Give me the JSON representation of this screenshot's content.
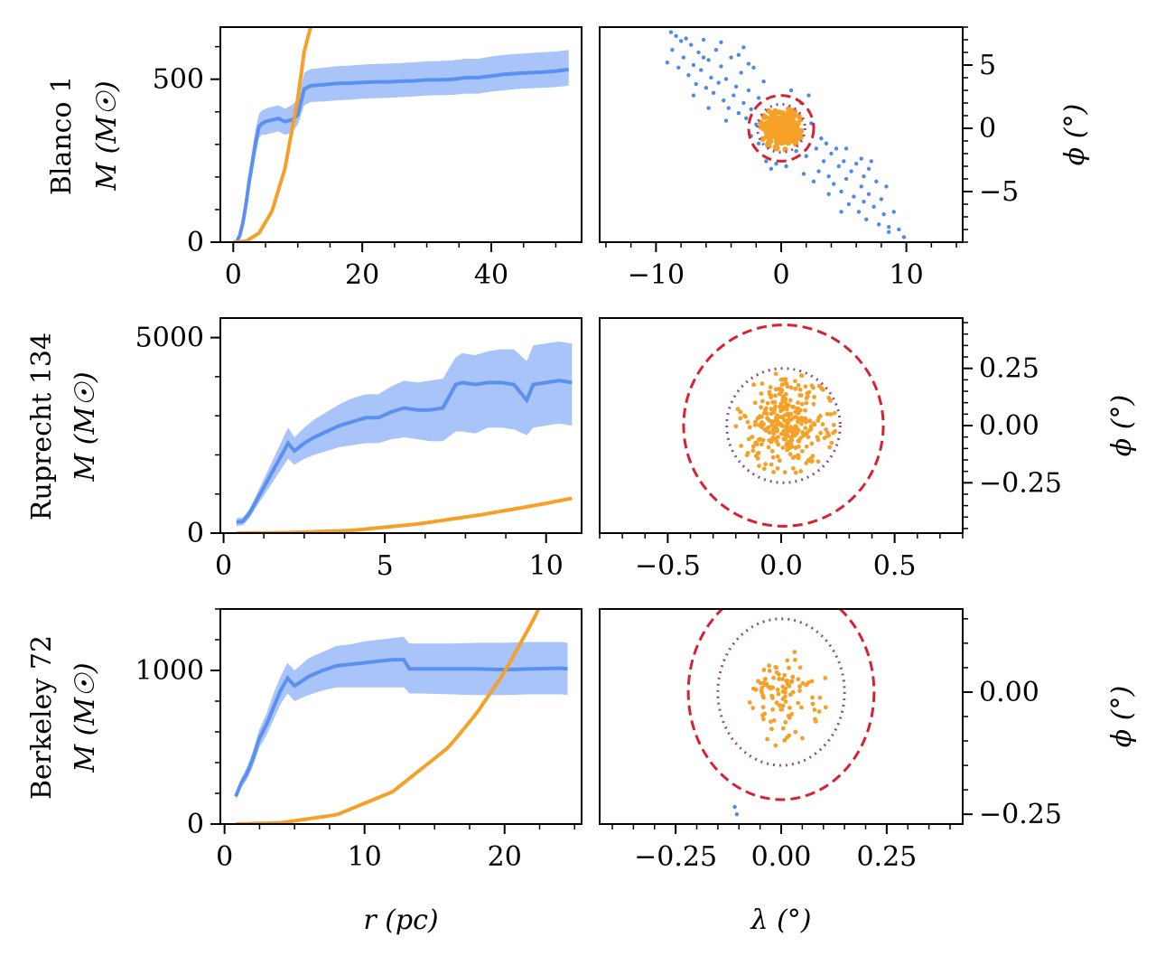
{
  "figure": {
    "xlabel_left": "r (pc)",
    "xlabel_right": "λ (°)"
  },
  "colors": {
    "profile": "#5b8ff0",
    "band": "#a8c4f8",
    "model": "#f5a027",
    "stars_member": "#f5a027",
    "stars_other": "#4f8ae8",
    "circle_outer": "#d62233",
    "circle_inner": "#8b4f8f"
  },
  "chart_data": [
    {
      "type": "line",
      "panel": "Blanco 1 mass profile",
      "row_label": "Blanco 1",
      "ylabel": "M (M☉)",
      "xlabel": "",
      "xlim": [
        -2,
        54
      ],
      "ylim": [
        0,
        660
      ],
      "xticks": [
        0,
        20,
        40
      ],
      "yticks": [
        0,
        500
      ],
      "series": [
        {
          "role": "profile",
          "x": [
            0.5,
            1,
            1.5,
            2,
            2.5,
            3,
            3.5,
            4,
            4.5,
            5,
            6,
            7,
            8,
            9,
            10,
            11,
            12,
            14,
            16,
            18,
            20,
            22,
            24,
            26,
            28,
            30,
            32,
            34,
            36,
            38,
            40,
            42,
            44,
            46,
            48,
            50,
            52
          ],
          "y": [
            0,
            20,
            60,
            120,
            190,
            250,
            310,
            355,
            365,
            370,
            375,
            380,
            370,
            375,
            390,
            470,
            480,
            483,
            487,
            488,
            490,
            492,
            492,
            494,
            495,
            498,
            498,
            500,
            505,
            505,
            510,
            515,
            518,
            520,
            522,
            525,
            530
          ],
          "lower": [
            0,
            15,
            50,
            100,
            160,
            210,
            270,
            320,
            330,
            330,
            335,
            340,
            330,
            335,
            360,
            420,
            430,
            432,
            435,
            437,
            440,
            442,
            443,
            445,
            447,
            450,
            451,
            452,
            456,
            456,
            462,
            466,
            470,
            472,
            474,
            476,
            480
          ],
          "upper": [
            0,
            25,
            70,
            140,
            220,
            290,
            350,
            395,
            405,
            410,
            415,
            420,
            410,
            420,
            435,
            520,
            532,
            535,
            540,
            542,
            545,
            547,
            548,
            550,
            552,
            555,
            556,
            558,
            563,
            563,
            570,
            575,
            578,
            580,
            583,
            585,
            590
          ]
        },
        {
          "role": "model",
          "x": [
            0,
            2,
            4,
            6,
            8,
            10,
            11,
            12
          ],
          "y": [
            0,
            3,
            28,
            95,
            225,
            440,
            585,
            660
          ]
        }
      ]
    },
    {
      "type": "scatter",
      "panel": "Blanco 1 sky",
      "xlabel": "",
      "ylabel": "ϕ (°)",
      "xlim": [
        -14.5,
        14.5
      ],
      "ylim": [
        -9,
        8
      ],
      "xticks": [
        -10,
        0,
        10
      ],
      "yticks": [
        -5,
        0,
        5
      ],
      "circles": [
        {
          "role": "outer",
          "center": [
            0,
            0
          ],
          "radius": 2.6
        },
        {
          "role": "inner",
          "center": [
            0,
            0
          ],
          "radius": 1.9
        }
      ],
      "member_cluster": {
        "center": [
          0,
          0
        ],
        "radius": 1.7,
        "count": 260
      },
      "others": [
        [
          -9.1,
          5.2
        ],
        [
          -8.7,
          6.2
        ],
        [
          -8.4,
          7.3
        ],
        [
          -8.2,
          4.8
        ],
        [
          -8.0,
          6.9
        ],
        [
          -7.8,
          5.6
        ],
        [
          -7.6,
          7.1
        ],
        [
          -7.4,
          4.2
        ],
        [
          -7.2,
          6.6
        ],
        [
          -7.0,
          5.0
        ],
        [
          -6.8,
          3.5
        ],
        [
          -6.6,
          6.0
        ],
        [
          -6.4,
          4.6
        ],
        [
          -6.2,
          7.0
        ],
        [
          -6.0,
          3.2
        ],
        [
          -5.8,
          5.4
        ],
        [
          -5.6,
          4.0
        ],
        [
          -5.4,
          2.8
        ],
        [
          -5.2,
          6.2
        ],
        [
          -5.0,
          3.6
        ],
        [
          -4.8,
          4.9
        ],
        [
          -4.6,
          2.2
        ],
        [
          -4.4,
          3.9
        ],
        [
          -4.2,
          1.6
        ],
        [
          -4.0,
          5.6
        ],
        [
          -3.8,
          2.6
        ],
        [
          -3.6,
          3.3
        ],
        [
          -3.4,
          1.2
        ],
        [
          -3.2,
          4.4
        ],
        [
          -3.0,
          2.0
        ],
        [
          -2.8,
          0.8
        ],
        [
          -2.6,
          3.0
        ],
        [
          -2.4,
          1.5
        ],
        [
          -2.2,
          4.8
        ],
        [
          -2.0,
          0.3
        ],
        [
          -1.8,
          2.4
        ],
        [
          -2.6,
          5.1
        ],
        [
          -3.4,
          5.8
        ],
        [
          -1.4,
          3.7
        ],
        [
          -1.2,
          -2.6
        ],
        [
          -0.8,
          -3.2
        ],
        [
          -0.4,
          -2.8
        ],
        [
          0.4,
          -3.0
        ],
        [
          0.8,
          3.0
        ],
        [
          1.2,
          -1.8
        ],
        [
          1.6,
          2.0
        ],
        [
          2.0,
          -2.2
        ],
        [
          2.4,
          0.4
        ],
        [
          2.8,
          -1.6
        ],
        [
          3.0,
          -3.4
        ],
        [
          3.2,
          -0.8
        ],
        [
          3.4,
          -2.6
        ],
        [
          3.6,
          -1.2
        ],
        [
          3.8,
          -3.8
        ],
        [
          4.0,
          -2.0
        ],
        [
          4.2,
          -4.4
        ],
        [
          4.4,
          -1.6
        ],
        [
          4.6,
          -3.0
        ],
        [
          4.8,
          -5.0
        ],
        [
          5.0,
          -2.6
        ],
        [
          5.2,
          -4.0
        ],
        [
          5.4,
          -6.0
        ],
        [
          5.6,
          -3.4
        ],
        [
          5.8,
          -5.4
        ],
        [
          6.0,
          -2.8
        ],
        [
          6.2,
          -6.6
        ],
        [
          6.4,
          -4.6
        ],
        [
          6.6,
          -3.8
        ],
        [
          6.8,
          -7.2
        ],
        [
          7.0,
          -5.2
        ],
        [
          7.2,
          -2.6
        ],
        [
          7.4,
          -6.2
        ],
        [
          7.6,
          -4.2
        ],
        [
          7.8,
          -7.6
        ],
        [
          8.0,
          -5.6
        ],
        [
          8.2,
          -6.8
        ],
        [
          8.4,
          -4.6
        ],
        [
          8.6,
          -7.8
        ],
        [
          9.0,
          -6.6
        ],
        [
          9.4,
          -8.0
        ],
        [
          9.8,
          -8.6
        ],
        [
          7.0,
          -3.2
        ],
        [
          6.4,
          -2.4
        ],
        [
          5.2,
          -1.6
        ],
        [
          -5.8,
          1.6
        ],
        [
          -7.0,
          2.6
        ],
        [
          -4.4,
          0.6
        ],
        [
          -6.2,
          5.6
        ],
        [
          -8.8,
          7.6
        ],
        [
          2.6,
          -4.2
        ],
        [
          1.8,
          -3.6
        ],
        [
          3.8,
          -5.2
        ],
        [
          4.8,
          -6.6
        ],
        [
          6.6,
          -5.8
        ],
        [
          8.6,
          -8.2
        ],
        [
          -3.0,
          6.4
        ],
        [
          -4.8,
          6.8
        ],
        [
          -1.8,
          -1.2
        ],
        [
          -2.4,
          -0.6
        ],
        [
          2.2,
          2.6
        ]
      ]
    },
    {
      "type": "line",
      "panel": "Ruprecht 134 mass profile",
      "row_label": "Ruprecht 134",
      "ylabel": "M (M☉)",
      "xlabel": "",
      "xlim": [
        -0.1,
        11.1
      ],
      "ylim": [
        0,
        5500
      ],
      "xticks": [
        0,
        5,
        10
      ],
      "yticks": [
        0,
        5000
      ],
      "series": [
        {
          "role": "profile",
          "x": [
            0.4,
            0.6,
            0.8,
            1.0,
            1.2,
            1.4,
            1.6,
            1.8,
            2.0,
            2.2,
            2.5,
            2.8,
            3.2,
            3.6,
            4.0,
            4.4,
            4.8,
            5.2,
            5.6,
            6.0,
            6.4,
            6.8,
            7.2,
            7.4,
            7.8,
            8.2,
            8.6,
            9.0,
            9.4,
            9.6,
            10.0,
            10.4,
            10.8
          ],
          "y": [
            280,
            300,
            500,
            800,
            1100,
            1400,
            1700,
            2000,
            2300,
            2100,
            2300,
            2450,
            2600,
            2750,
            2850,
            2950,
            2950,
            3100,
            3200,
            3150,
            3150,
            3200,
            3800,
            3850,
            3800,
            3850,
            3850,
            3800,
            3400,
            3800,
            3850,
            3900,
            3850
          ],
          "lower": [
            180,
            200,
            380,
            650,
            900,
            1150,
            1400,
            1650,
            1900,
            1750,
            1900,
            2000,
            2100,
            2200,
            2250,
            2300,
            2300,
            2400,
            2450,
            2400,
            2350,
            2350,
            2600,
            2600,
            2550,
            2700,
            2700,
            2650,
            2500,
            2700,
            2750,
            2800,
            2750
          ],
          "upper": [
            380,
            400,
            620,
            950,
            1300,
            1650,
            2000,
            2350,
            2700,
            2450,
            2700,
            2900,
            3100,
            3300,
            3450,
            3550,
            3550,
            3750,
            3900,
            3850,
            3900,
            3950,
            4500,
            4600,
            4550,
            4650,
            4700,
            4700,
            4400,
            4800,
            4850,
            4900,
            4850
          ]
        },
        {
          "role": "model",
          "x": [
            0.4,
            2,
            4,
            6,
            8,
            10,
            10.8
          ],
          "y": [
            0,
            12,
            70,
            230,
            470,
            760,
            890
          ]
        }
      ]
    },
    {
      "type": "scatter",
      "panel": "Ruprecht 134 sky",
      "xlabel": "",
      "ylabel": "ϕ (°)",
      "xlim": [
        -0.8,
        0.8
      ],
      "ylim": [
        -0.47,
        0.47
      ],
      "xticks": [
        -0.5,
        0.0,
        0.5
      ],
      "yticks": [
        -0.25,
        0.0,
        0.25
      ],
      "circles": [
        {
          "role": "outer",
          "center": [
            0.01,
            0.0
          ],
          "radius": 0.44
        },
        {
          "role": "inner",
          "center": [
            0.01,
            0.0
          ],
          "radius": 0.25
        }
      ],
      "member_cluster": {
        "center": [
          0.02,
          0.01
        ],
        "radius": 0.22,
        "count": 320
      },
      "others": []
    },
    {
      "type": "line",
      "panel": "Berkeley 72 mass profile",
      "row_label": "Berkeley 72",
      "ylabel": "M (M☉)",
      "xlabel": "r (pc)",
      "xlim": [
        -0.3,
        25.5
      ],
      "ylim": [
        0,
        1400
      ],
      "xticks": [
        0,
        10,
        20
      ],
      "yticks": [
        0,
        1000
      ],
      "series": [
        {
          "role": "profile",
          "x": [
            0.8,
            1.2,
            1.6,
            2.0,
            2.5,
            3.0,
            3.5,
            4.0,
            4.5,
            5.0,
            5.5,
            6.0,
            7.0,
            8.0,
            9.0,
            10.0,
            11.0,
            12.0,
            12.8,
            13.2,
            14.0,
            16.0,
            18.0,
            20.0,
            22.0,
            24.0,
            24.5
          ],
          "y": [
            180,
            270,
            330,
            420,
            560,
            650,
            760,
            870,
            950,
            900,
            930,
            960,
            1000,
            1030,
            1040,
            1050,
            1060,
            1070,
            1070,
            1010,
            1010,
            1010,
            1010,
            1005,
            1010,
            1015,
            1010
          ],
          "lower": [
            160,
            240,
            290,
            370,
            500,
            580,
            680,
            780,
            850,
            800,
            820,
            840,
            870,
            890,
            890,
            890,
            890,
            890,
            890,
            850,
            850,
            845,
            840,
            840,
            845,
            845,
            840
          ],
          "upper": [
            200,
            300,
            370,
            470,
            620,
            720,
            850,
            960,
            1050,
            1000,
            1040,
            1080,
            1120,
            1160,
            1170,
            1190,
            1200,
            1210,
            1220,
            1175,
            1175,
            1175,
            1180,
            1180,
            1185,
            1185,
            1180
          ]
        },
        {
          "role": "model",
          "x": [
            0.8,
            4,
            8,
            12,
            16,
            18,
            20,
            22,
            24
          ],
          "y": [
            0,
            8,
            60,
            210,
            500,
            720,
            990,
            1320,
            1700
          ]
        }
      ]
    },
    {
      "type": "scatter",
      "panel": "Berkeley 72 sky",
      "xlabel": "λ (°)",
      "ylabel": "ϕ (°)",
      "xlim": [
        -0.43,
        0.43
      ],
      "ylim": [
        -0.27,
        0.17
      ],
      "xticks": [
        -0.25,
        0.0,
        0.25
      ],
      "yticks": [
        -0.25,
        0.0
      ],
      "circles": [
        {
          "role": "outer",
          "center": [
            0.0,
            0.0
          ],
          "radius": 0.22
        },
        {
          "role": "inner",
          "center": [
            0.0,
            0.0
          ],
          "radius": 0.15
        }
      ],
      "member_cluster": {
        "center": [
          0.0,
          0.0
        ],
        "radius": 0.11,
        "count": 100
      },
      "others": [
        [
          -0.105,
          -0.25
        ],
        [
          -0.11,
          -0.235
        ]
      ]
    }
  ]
}
